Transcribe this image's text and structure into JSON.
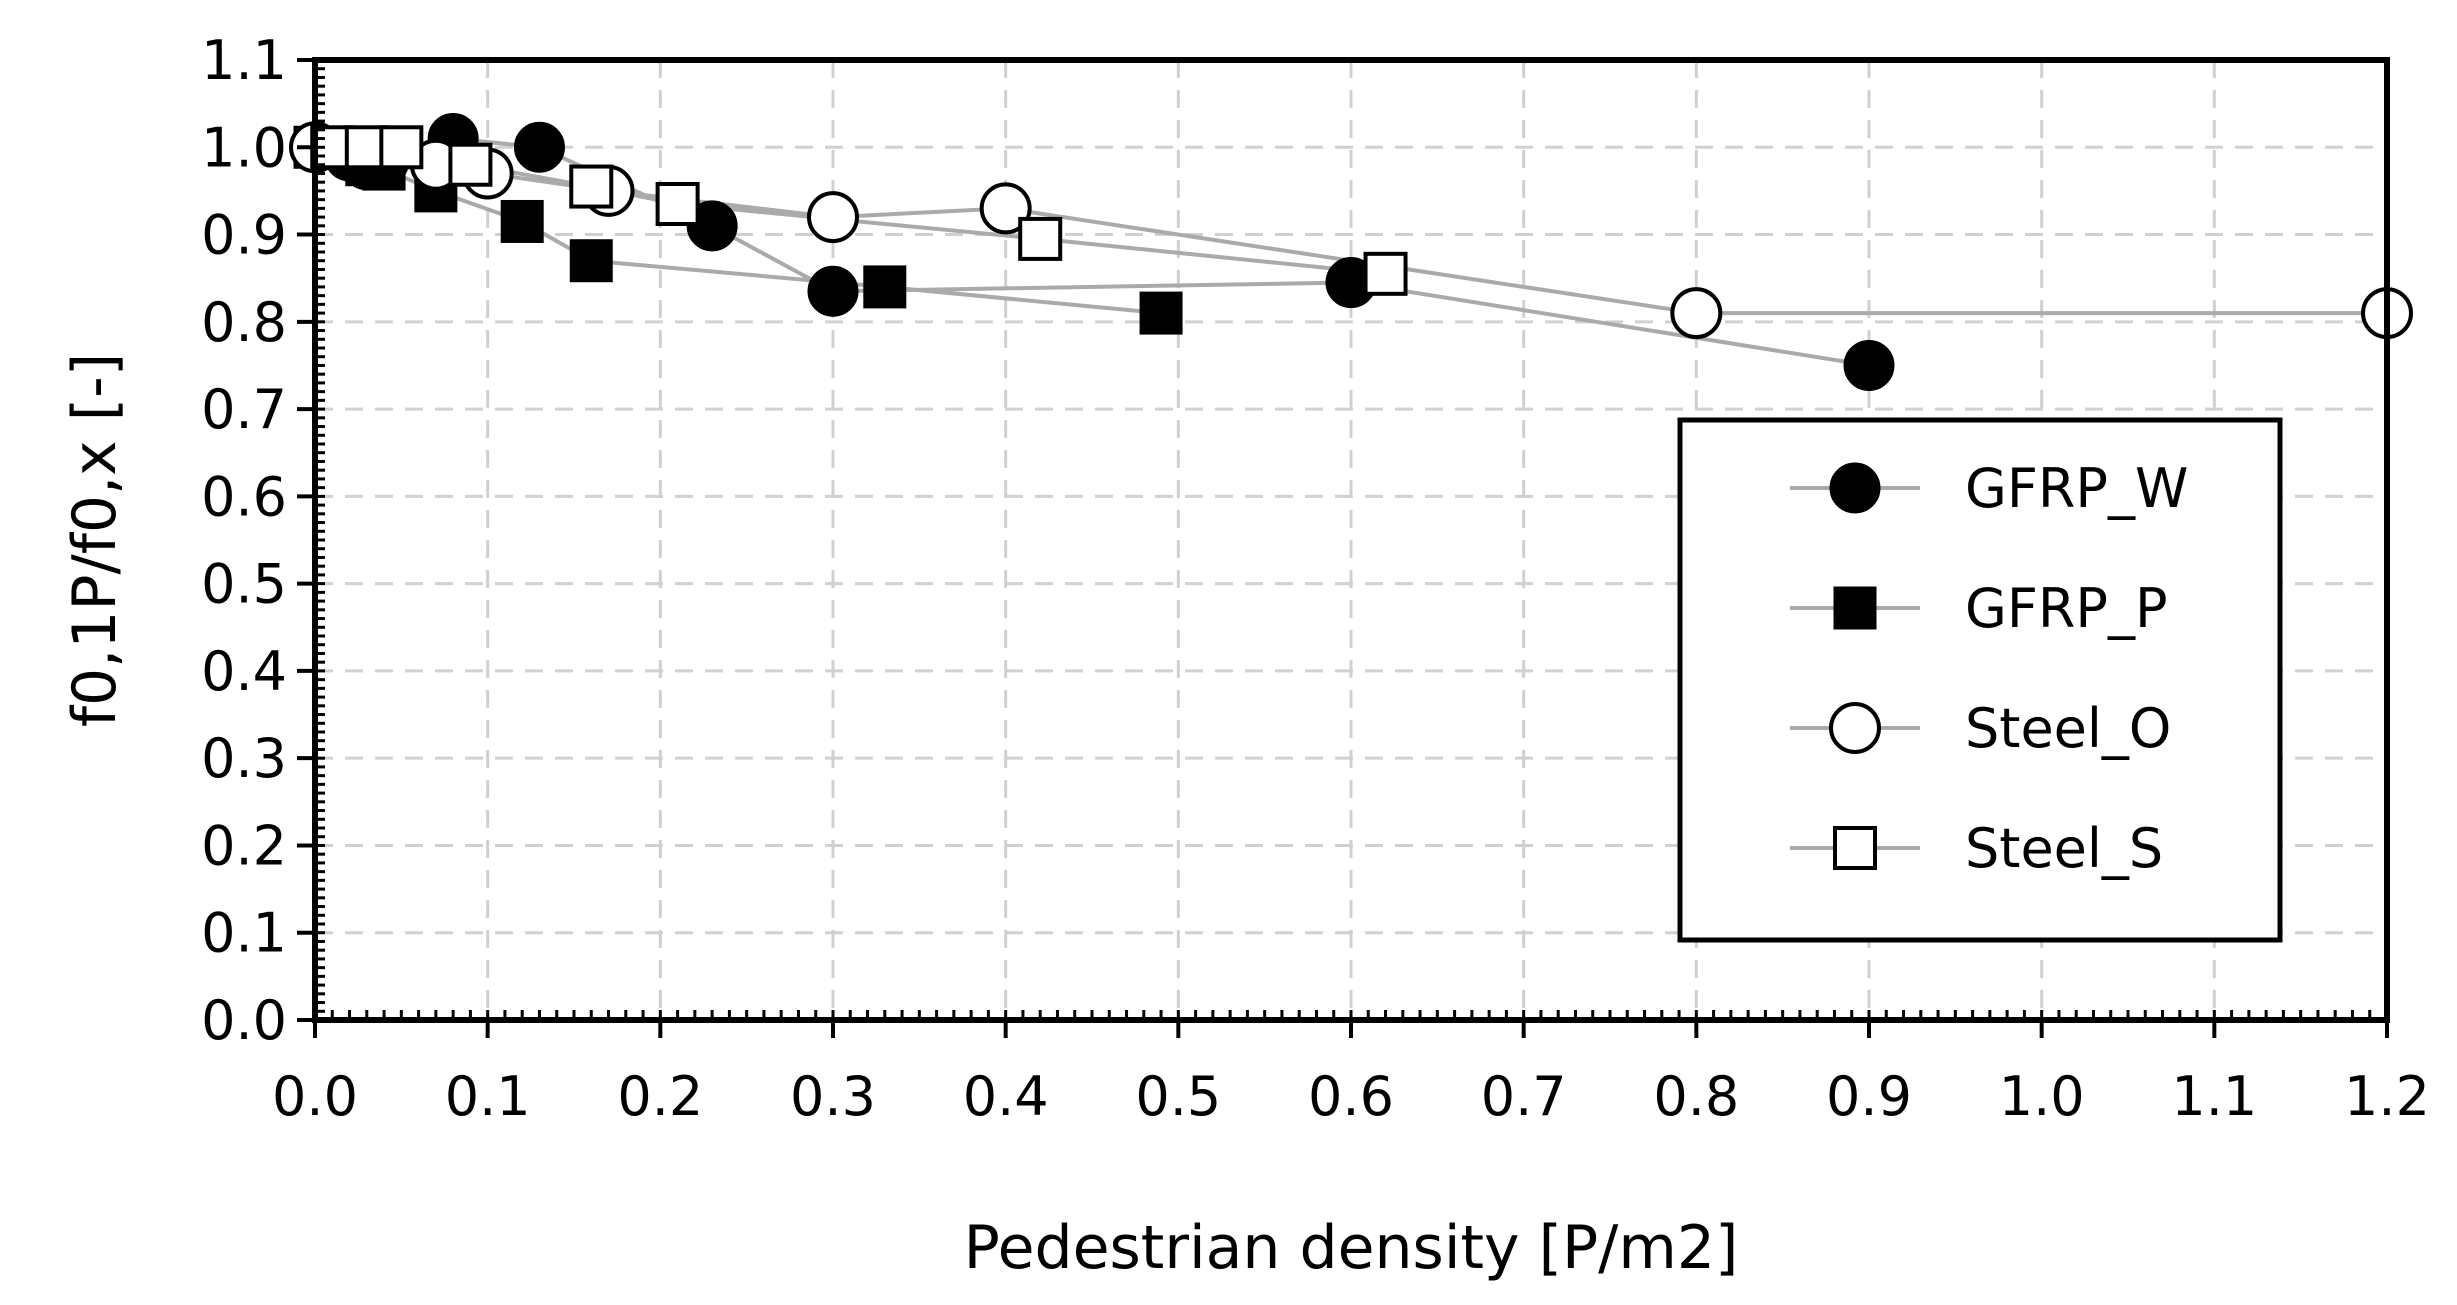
{
  "chart_data": {
    "type": "scatter",
    "title": "",
    "xlabel": "Pedestrian density [P/m2]",
    "ylabel": "f0,1P/f0,x [-]",
    "xlim": [
      0.0,
      1.2
    ],
    "ylim": [
      0.0,
      1.1
    ],
    "xticks": [
      "0.0",
      "0.1",
      "0.2",
      "0.3",
      "0.4",
      "0.5",
      "0.6",
      "0.7",
      "0.8",
      "0.9",
      "1.0",
      "1.1",
      "1.2"
    ],
    "yticks": [
      "0.0",
      "0.1",
      "0.2",
      "0.3",
      "0.4",
      "0.5",
      "0.6",
      "0.7",
      "0.8",
      "0.9",
      "1.0",
      "1.1"
    ],
    "grid": true,
    "legend_position": "right",
    "line_color": "#aaaaaa",
    "series": [
      {
        "name": "GFRP_W",
        "marker": "circle-filled",
        "x": [
          0.0,
          0.02,
          0.03,
          0.04,
          0.08,
          0.13,
          0.23,
          0.3,
          0.6,
          0.9
        ],
        "y": [
          1.0,
          0.99,
          0.98,
          0.985,
          1.01,
          1.0,
          0.91,
          0.835,
          0.845,
          0.75
        ]
      },
      {
        "name": "GFRP_P",
        "marker": "square-filled",
        "x": [
          0.0,
          0.03,
          0.04,
          0.07,
          0.12,
          0.16,
          0.33,
          0.49
        ],
        "y": [
          1.0,
          0.98,
          0.975,
          0.95,
          0.915,
          0.87,
          0.84,
          0.81
        ]
      },
      {
        "name": "Steel_O",
        "marker": "circle-open",
        "x": [
          0.0,
          0.07,
          0.1,
          0.17,
          0.3,
          0.4,
          0.8,
          1.2
        ],
        "y": [
          1.0,
          0.98,
          0.97,
          0.95,
          0.92,
          0.93,
          0.81,
          0.81
        ]
      },
      {
        "name": "Steel_S",
        "marker": "square-open",
        "x": [
          0.01,
          0.03,
          0.05,
          0.09,
          0.16,
          0.21,
          0.42,
          0.62
        ],
        "y": [
          1.0,
          1.0,
          1.0,
          0.98,
          0.955,
          0.935,
          0.895,
          0.855
        ]
      }
    ]
  }
}
